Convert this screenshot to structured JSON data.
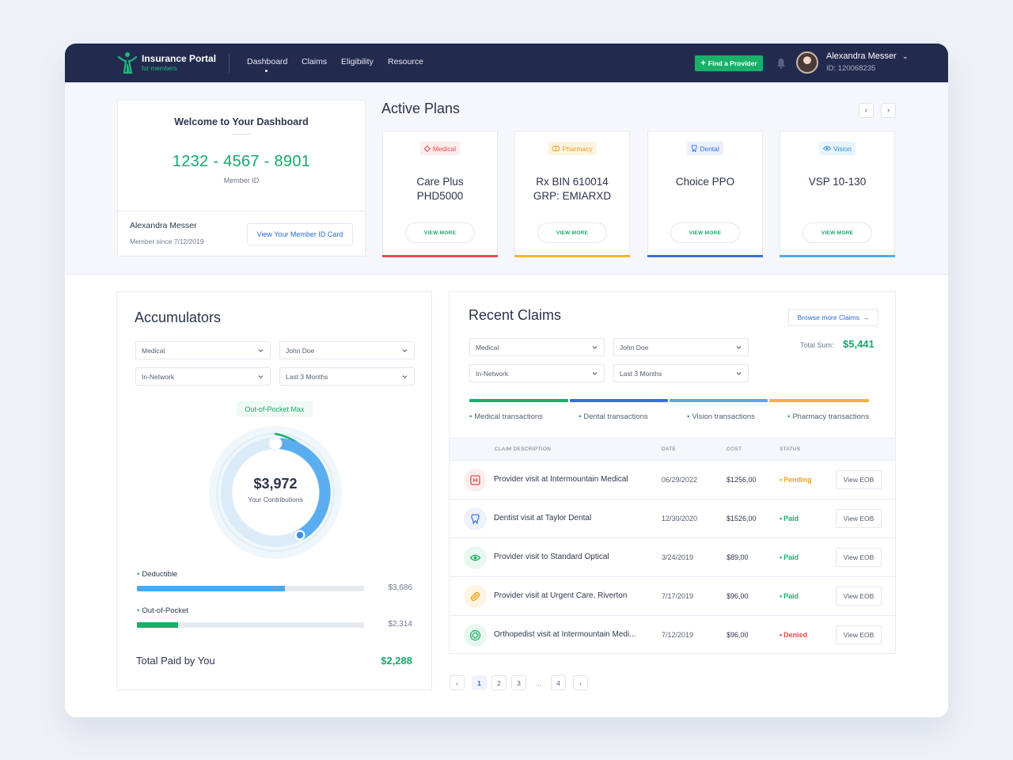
{
  "header": {
    "app_title": "Insurance Portal",
    "app_subtitle": "for members",
    "nav": [
      "Dashboard",
      "Claims",
      "Eligibility",
      "Resource"
    ],
    "find_provider": "Find a Provider",
    "user_name": "Alexandra Messer",
    "user_id": "ID: 120068235"
  },
  "welcome": {
    "title": "Welcome to Your Dashboard",
    "member_number": "1232 - 4567 - 8901",
    "member_label": "Member ID",
    "name": "Alexandra Messer",
    "since": "Member since 7/12/2019",
    "id_card_button": "View Your Member ID Card"
  },
  "plans": {
    "title": "Active Plans",
    "view_more": "VIEW MORE",
    "items": [
      {
        "badge": "Medical",
        "line1": "Care Plus",
        "line2": "PHD5000",
        "color": "#e84c4c",
        "badge_bg": "#fdecec"
      },
      {
        "badge": "Pharmacy",
        "line1": "Rx BIN 610014",
        "line2": "GRP: EMIARXD",
        "color": "#f5b333",
        "badge_bg": "#fdf3df"
      },
      {
        "badge": "Dental",
        "line1": "Choice PPO",
        "line2": "",
        "color": "#3a6fe0",
        "badge_bg": "#eaf0fd"
      },
      {
        "badge": "Vision",
        "line1": "VSP 10-130",
        "line2": "",
        "color": "#4aaeea",
        "badge_bg": "#e6f4fd"
      }
    ]
  },
  "accumulators": {
    "title": "Accumulators",
    "filters": [
      "Medical",
      "John Doe",
      "In-Network",
      "Last 3 Months"
    ],
    "oop_chip": "Out-of-Pocket Max",
    "contributions_value": "$3,972",
    "contributions_label": "Your Contributions",
    "bars": [
      {
        "label": "Deductible",
        "amount": "$3,686",
        "fraction": 0.65,
        "color": "#4ea8ee"
      },
      {
        "label": "Out-of-Pocket",
        "amount": "$2,314",
        "fraction": 0.18,
        "color": "#18b16a"
      }
    ],
    "total_label": "Total Paid by You",
    "total_value": "$2,288"
  },
  "claims": {
    "title": "Recent Claims",
    "browse": "Browse more Claims",
    "total_sum_label": "Total Sum:",
    "total_sum_value": "$5,441",
    "filters": [
      "Medical",
      "John Doe",
      "In-Network",
      "Last 3 Months"
    ],
    "legend": [
      "Medical transactions",
      "Dental transactions",
      "Vision transactions",
      "Pharmacy transactions"
    ],
    "columns": [
      "CLAIM DESCRIPTION",
      "DATE",
      "COST",
      "STATUS"
    ],
    "eob_label": "View EOB",
    "rows": [
      {
        "icon": "hospital-icon",
        "desc": "Provider visit at Intermountain Medical",
        "date": "06/29/2022",
        "cost": "$1256,00",
        "status": "Pending",
        "status_color": "#f0a020",
        "icon_color": "#e84c4c",
        "icon_bg": "#fdeeee"
      },
      {
        "icon": "tooth-icon",
        "desc": "Dentist visit at Taylor Dental",
        "date": "12/30/2020",
        "cost": "$1526,00",
        "status": "Paid",
        "status_color": "#18b16a",
        "icon_color": "#3a6fe0",
        "icon_bg": "#edf2fd"
      },
      {
        "icon": "eye-icon",
        "desc": "Provider visit to Standard Optical",
        "date": "3/24/2019",
        "cost": "$89,00",
        "status": "Paid",
        "status_color": "#18b16a",
        "icon_color": "#18b16a",
        "icon_bg": "#e8f7ef"
      },
      {
        "icon": "pill-icon",
        "desc": "Provider visit at Urgent Care, Riverton",
        "date": "7/17/2019",
        "cost": "$96,00",
        "status": "Paid",
        "status_color": "#18b16a",
        "icon_color": "#f5a623",
        "icon_bg": "#fef4e4"
      },
      {
        "icon": "medical-cross-icon",
        "desc": "Orthopedist visit at Intermountain Medi...",
        "date": "7/12/2019",
        "cost": "$96,00",
        "status": "Denied",
        "status_color": "#e84c4c",
        "icon_color": "#18b16a",
        "icon_bg": "#e8f7ef"
      }
    ]
  },
  "pagination": {
    "prev": "‹",
    "pages": [
      "1",
      "2",
      "3",
      "…",
      "4"
    ],
    "next": "›",
    "current": "1"
  }
}
